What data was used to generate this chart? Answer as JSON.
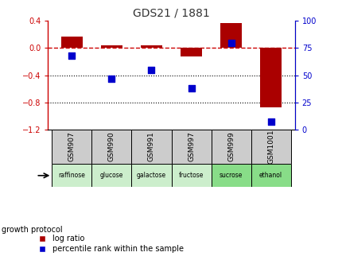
{
  "title": "GDS21 / 1881",
  "samples": [
    "GSM907",
    "GSM990",
    "GSM991",
    "GSM997",
    "GSM999",
    "GSM1001"
  ],
  "protocols": [
    "raffinose",
    "glucose",
    "galactose",
    "fructose",
    "sucrose",
    "ethanol"
  ],
  "log_ratio": [
    0.17,
    0.04,
    0.04,
    -0.12,
    0.37,
    -0.87
  ],
  "percentile_rank": [
    68,
    47,
    55,
    38,
    80,
    7
  ],
  "bar_color": "#aa0000",
  "dot_color": "#0000cc",
  "ylim_left": [
    -1.2,
    0.4
  ],
  "ylim_right": [
    0,
    100
  ],
  "yticks_left": [
    -1.2,
    -0.8,
    -0.4,
    0.0,
    0.4
  ],
  "yticks_right": [
    0,
    25,
    50,
    75,
    100
  ],
  "hline_y": 0.0,
  "dotted_lines": [
    -0.4,
    -0.8
  ],
  "growth_protocol_label": "growth protocol",
  "legend_log_label": "log ratio",
  "legend_pct_label": "percentile rank within the sample",
  "protocol_colors": [
    "#cceecc",
    "#cceecc",
    "#cceecc",
    "#cceecc",
    "#88dd88",
    "#88dd88"
  ],
  "bar_width": 0.55,
  "title_color": "#333333",
  "left_axis_color": "#cc0000",
  "right_axis_color": "#0000cc",
  "gsm_bg_color": "#cccccc"
}
